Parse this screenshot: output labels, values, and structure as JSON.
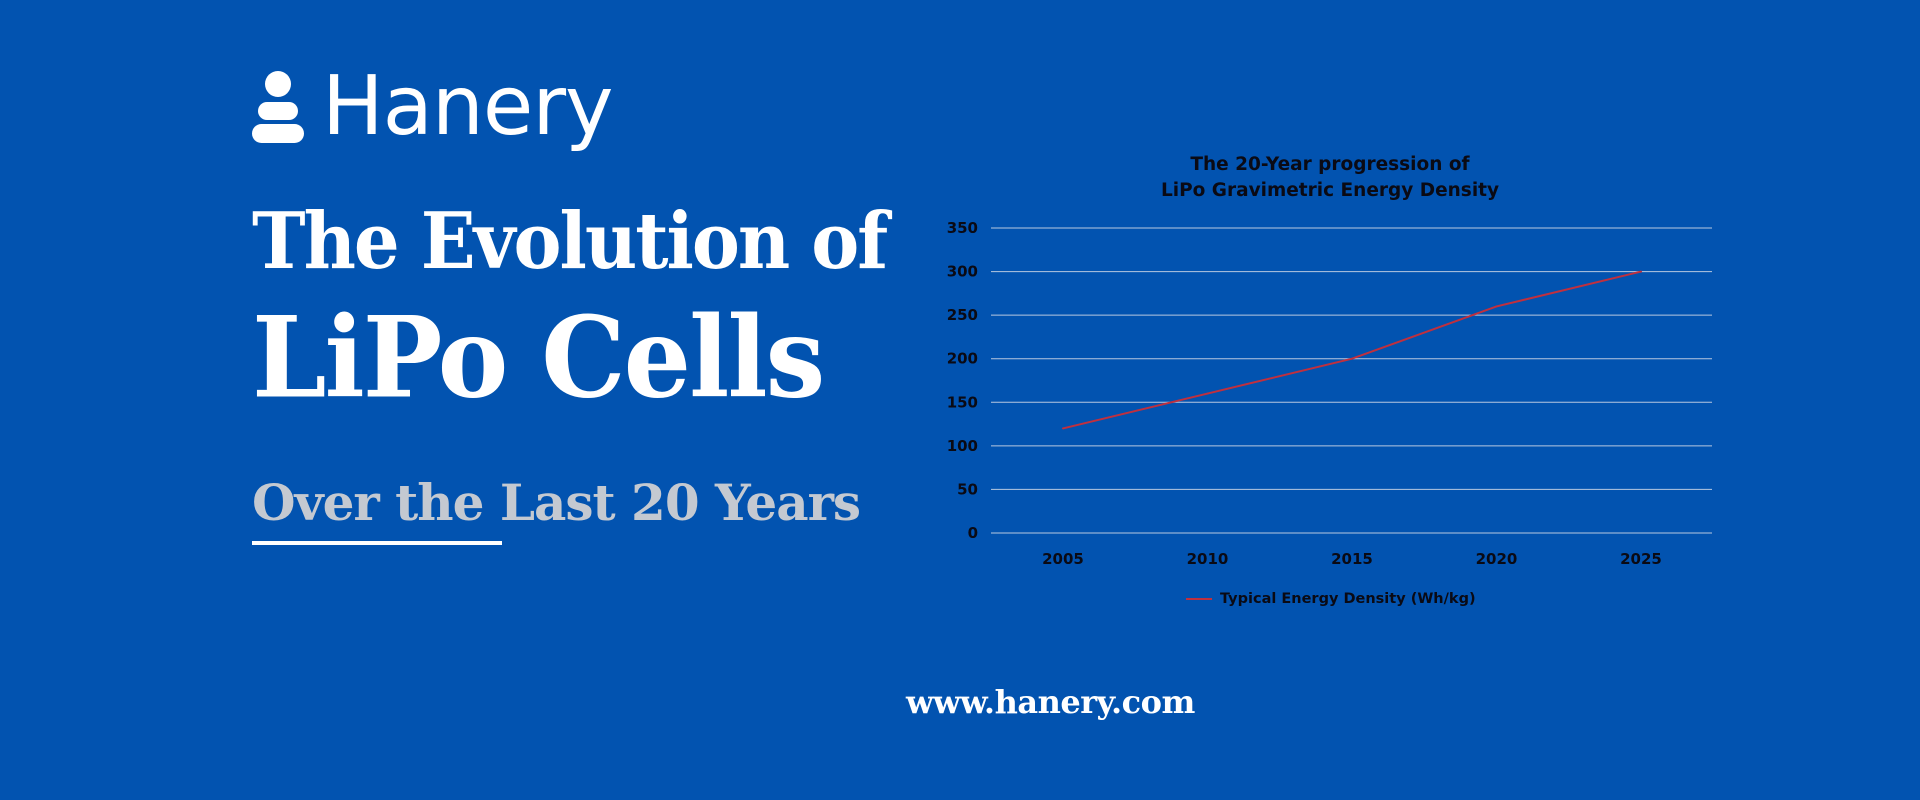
{
  "brand": {
    "name": "Hanery",
    "logo_icon": "person-icon"
  },
  "headline": {
    "line1": "The Evolution of",
    "line2": "LiPo Cells",
    "subheadline": "Over the Last 20 Years"
  },
  "website": "www.hanery.com",
  "colors": {
    "background": "#0253b0",
    "line": "#c0303e",
    "gridline": "#b8c8e0",
    "subheadline": "#c4c9d1"
  },
  "chart_data": {
    "type": "line",
    "title_lines": [
      "The 20-Year progression of",
      "LiPo Gravimetric Energy Density"
    ],
    "categories": [
      "2005",
      "2010",
      "2015",
      "2020",
      "2025"
    ],
    "series": [
      {
        "name": "Typical Energy Density (Wh/kg)",
        "values": [
          120,
          160,
          200,
          260,
          300
        ]
      }
    ],
    "yticks": [
      "0",
      "50",
      "100",
      "150",
      "200",
      "250",
      "300",
      "350"
    ],
    "ylim": [
      0,
      350
    ],
    "grid": true,
    "legend_position": "bottom"
  }
}
